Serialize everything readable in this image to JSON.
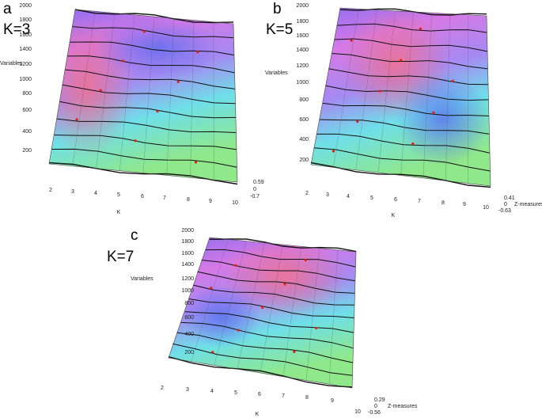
{
  "panels": [
    {
      "letter": "a",
      "k_label": "K=3",
      "y_label": "Variables",
      "y_ticks": [
        2000,
        1800,
        1600,
        1400,
        1200,
        1000,
        800,
        600,
        400,
        200
      ],
      "x_label": "K",
      "x_ticks": [
        2,
        3,
        4,
        5,
        6,
        7,
        8,
        9,
        10
      ],
      "z_ticks": [
        0.59,
        0,
        -0.7
      ]
    },
    {
      "letter": "b",
      "k_label": "K=5",
      "y_label": "Variables",
      "y_ticks": [
        2000,
        1800,
        1600,
        1400,
        1200,
        1000,
        800,
        600,
        400,
        200
      ],
      "x_label": "K",
      "x_ticks": [
        2,
        3,
        4,
        5,
        6,
        7,
        8,
        9,
        10
      ],
      "z_ticks": [
        0.41,
        0,
        -0.63
      ],
      "z_label": "Z-measures"
    },
    {
      "letter": "c",
      "k_label": "K=7",
      "y_label": "Variables",
      "y_ticks": [
        2000,
        1800,
        1600,
        1400,
        1200,
        1000,
        800,
        600,
        400,
        200
      ],
      "x_label": "K",
      "x_ticks": [
        2,
        3,
        4,
        5,
        6,
        7,
        8,
        9,
        10
      ],
      "z_ticks": [
        0.29,
        0,
        -0.56
      ],
      "z_label": "Z-measures"
    }
  ]
}
